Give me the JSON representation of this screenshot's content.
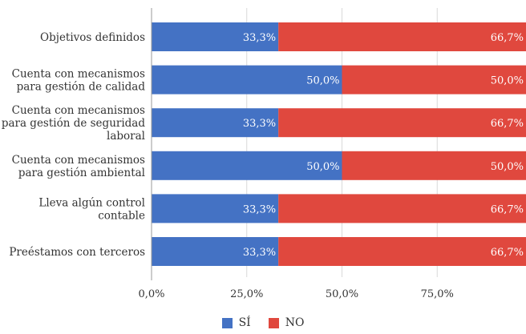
{
  "chart_data": {
    "type": "bar",
    "orientation": "horizontal",
    "stacked": true,
    "categories": [
      "Objetivos definidos",
      "Cuenta con mecanismos para gestión de calidad",
      "Cuenta con mecanismos para gestión de seguridad laboral",
      "Cuenta con mecanismos para gestión ambiental",
      "Lleva algún control contable",
      "Preéstamos con terceros"
    ],
    "category_lines": [
      [
        "Objetivos definidos"
      ],
      [
        "Cuenta con mecanismos",
        "para gestión de calidad"
      ],
      [
        "Cuenta con mecanismos",
        "para gestión de seguridad",
        "laboral"
      ],
      [
        "Cuenta con mecanismos",
        "para gestión ambiental"
      ],
      [
        "Lleva algún control",
        "contable"
      ],
      [
        "Preéstamos con terceros"
      ]
    ],
    "series": [
      {
        "name": "SÍ",
        "color": "#4472c4",
        "values": [
          33.3,
          50.0,
          33.3,
          50.0,
          33.3,
          33.3
        ],
        "labels": [
          "33,3%",
          "50,0%",
          "33,3%",
          "50,0%",
          "33,3%",
          "33,3%"
        ]
      },
      {
        "name": "NO",
        "color": "#e0483e",
        "values": [
          66.7,
          50.0,
          66.7,
          50.0,
          66.7,
          66.7
        ],
        "labels": [
          "66,7%",
          "50,0%",
          "66,7%",
          "50,0%",
          "66,7%",
          "66,7%"
        ]
      }
    ],
    "xlim": [
      0,
      100
    ],
    "x_ticks": [
      0,
      25,
      50,
      75
    ],
    "x_tick_labels": [
      "0,0%",
      "25,0%",
      "50,0%",
      "75,0%"
    ],
    "grid": true,
    "legend_position": "bottom",
    "xlabel": "",
    "ylabel": "",
    "title": ""
  }
}
